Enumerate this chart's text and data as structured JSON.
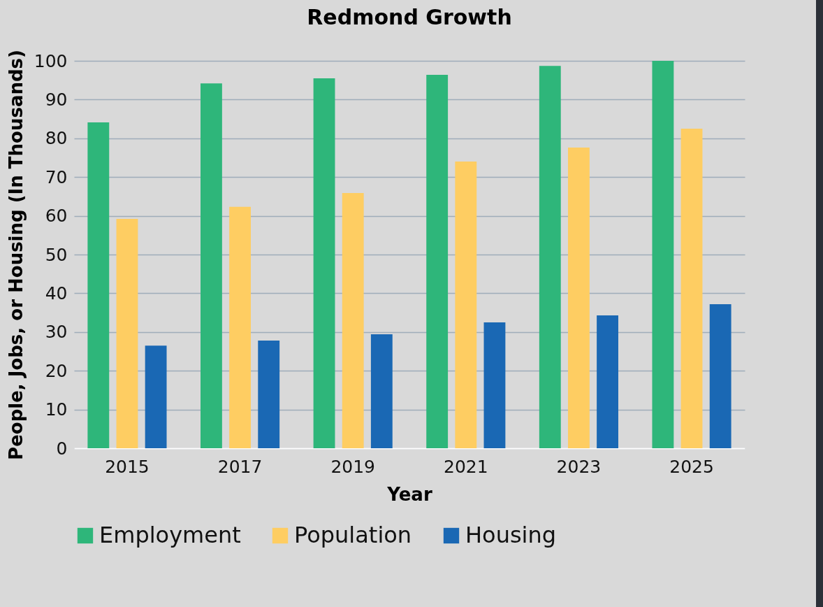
{
  "chart_data": {
    "type": "bar",
    "title": "Redmond Growth",
    "xlabel": "Year",
    "ylabel": "People, Jobs, or Housing (In Thousands)",
    "categories": [
      "2015",
      "2017",
      "2019",
      "2021",
      "2023",
      "2025"
    ],
    "series": [
      {
        "name": "Employment",
        "color": "#2eb67a",
        "values": [
          84.1,
          94.2,
          95.5,
          96.4,
          98.7,
          100
        ]
      },
      {
        "name": "Population",
        "color": "#fecd62",
        "values": [
          59.2,
          62.3,
          65.9,
          74.0,
          77.6,
          82.5
        ]
      },
      {
        "name": "Housing",
        "color": "#1a68b4",
        "values": [
          26.5,
          27.8,
          29.4,
          32.5,
          34.3,
          37.2
        ]
      }
    ],
    "ylim": [
      0,
      100
    ],
    "yticks": [
      0,
      10,
      20,
      30,
      40,
      50,
      60,
      70,
      80,
      90,
      100
    ],
    "grid": "y",
    "legend": "bottom"
  }
}
